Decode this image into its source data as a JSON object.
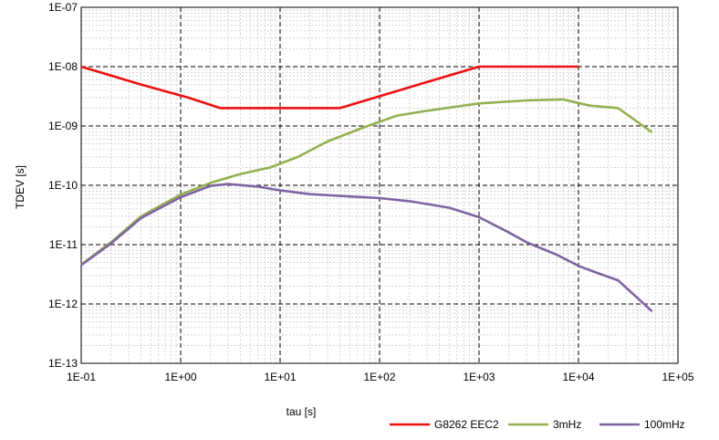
{
  "chart_data": {
    "type": "line",
    "xlabel": "tau [s]",
    "ylabel": "TDEV [s]",
    "x_scale": "log",
    "y_scale": "log",
    "xlim": [
      0.1,
      100000
    ],
    "ylim": [
      1e-13,
      1e-07
    ],
    "x_tick_values": [
      0.1,
      1,
      10,
      100,
      1000,
      10000,
      100000
    ],
    "x_tick_labels": [
      "1E-01",
      "1E+00",
      "1E+01",
      "1E+02",
      "1E+03",
      "1E+04",
      "1E+05"
    ],
    "y_tick_values": [
      1e-13,
      1e-12,
      1e-11,
      1e-10,
      1e-09,
      1e-08,
      1e-07
    ],
    "y_tick_labels": [
      "1E-13",
      "1E-12",
      "1E-11",
      "1E-10",
      "1E-09",
      "1E-08",
      "1E-07"
    ],
    "grid": true,
    "legend_position": "bottom-right",
    "colors": {
      "G8262 EEC2": "#ee1111",
      "3mHz": "#92b050",
      "100mHz": "#7f64a2"
    },
    "series": [
      {
        "name": "G8262 EEC2",
        "x": [
          0.1,
          0.4,
          1.2,
          2.5,
          40,
          300,
          1000,
          10000
        ],
        "y": [
          1e-08,
          5e-09,
          3e-09,
          2e-09,
          2e-09,
          5.5e-09,
          1e-08,
          1e-08
        ]
      },
      {
        "name": "3mHz",
        "x": [
          0.1,
          0.2,
          0.4,
          1,
          2,
          4,
          8,
          15,
          30,
          70,
          150,
          300,
          1000,
          3000,
          7000,
          13000,
          25000,
          55000
        ],
        "y": [
          4.6e-12,
          1.1e-11,
          3e-11,
          7e-11,
          1.1e-10,
          1.55e-10,
          2e-10,
          3e-10,
          5.5e-10,
          9.5e-10,
          1.5e-09,
          1.8e-09,
          2.4e-09,
          2.7e-09,
          2.8e-09,
          2.2e-09,
          2e-09,
          7.8e-10
        ]
      },
      {
        "name": "100mHz",
        "x": [
          0.1,
          0.2,
          0.4,
          1,
          2,
          3,
          6,
          10,
          20,
          50,
          100,
          200,
          500,
          1000,
          2000,
          3000,
          6000,
          10000,
          15000,
          25000,
          55000
        ],
        "y": [
          4.5e-12,
          1.05e-11,
          2.8e-11,
          6.3e-11,
          9.8e-11,
          1.05e-10,
          9.5e-11,
          8.2e-11,
          7.1e-11,
          6.5e-11,
          6.1e-11,
          5.4e-11,
          4.2e-11,
          2.9e-11,
          1.6e-11,
          1.1e-11,
          6.8e-12,
          4.4e-12,
          3.4e-12,
          2.5e-12,
          7.5e-13
        ]
      }
    ]
  }
}
